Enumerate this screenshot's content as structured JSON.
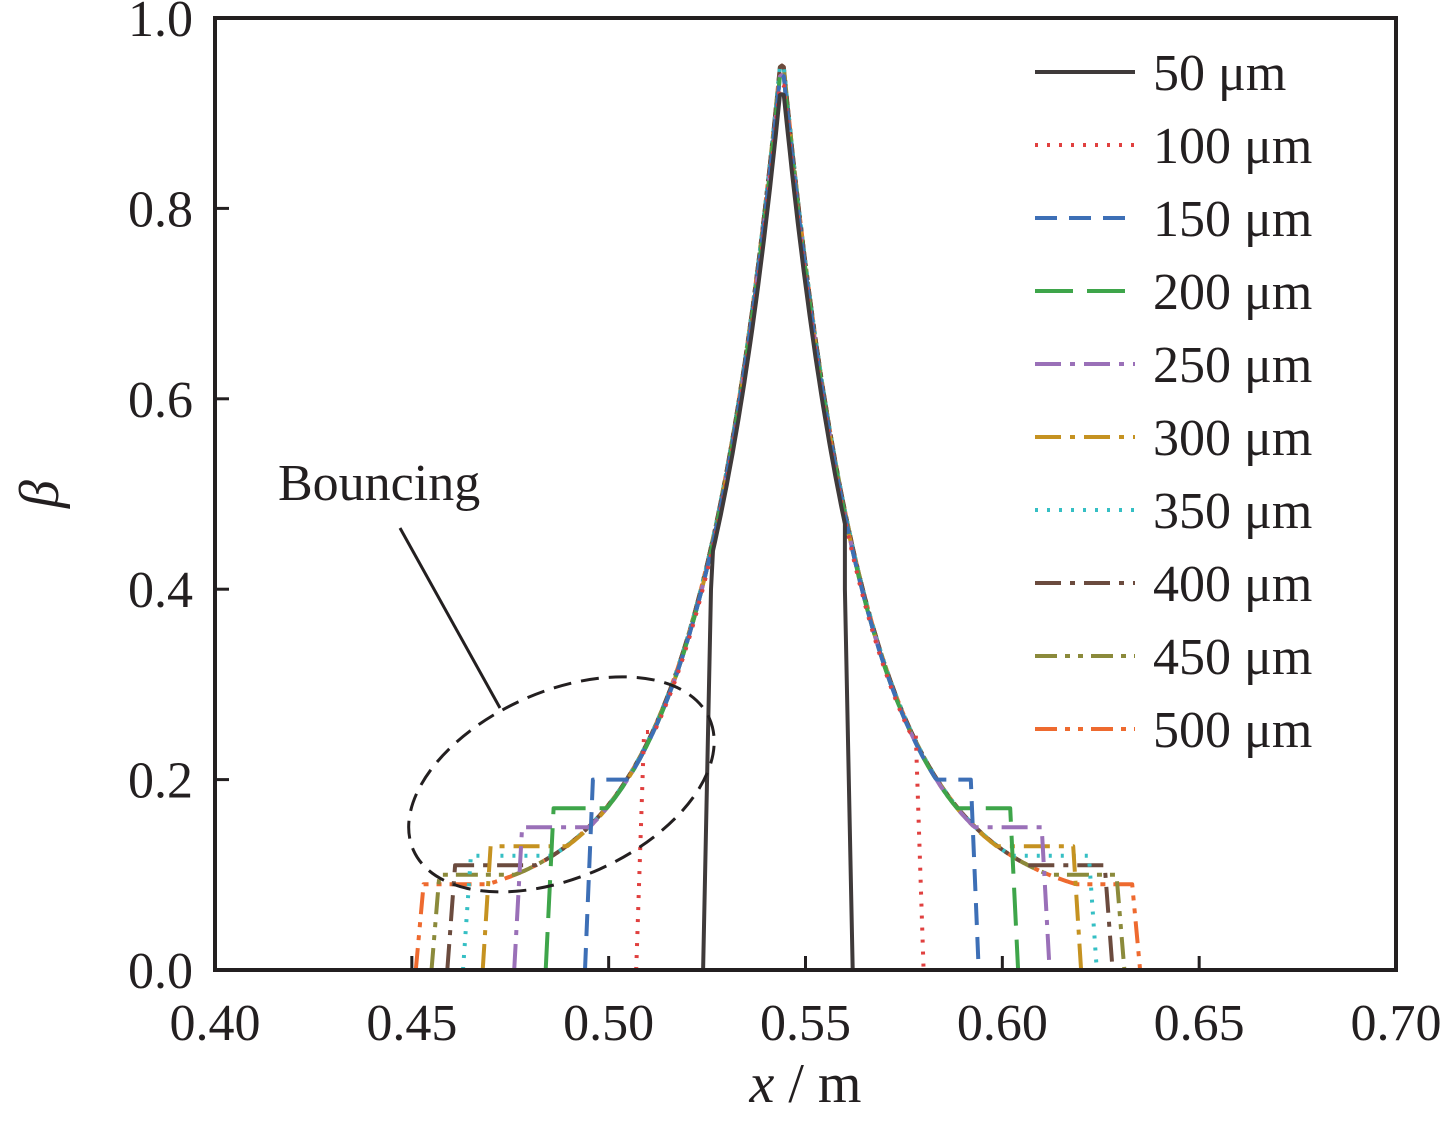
{
  "chart_data": {
    "type": "line",
    "xlabel_var": "x",
    "xlabel_unit": " / m",
    "ylabel": "β",
    "xlim": [
      0.4,
      0.7
    ],
    "ylim": [
      0.0,
      1.0
    ],
    "xticks": [
      "0.40",
      "0.45",
      "0.50",
      "0.55",
      "0.60",
      "0.65",
      "0.70"
    ],
    "yticks": [
      "0.0",
      "0.2",
      "0.4",
      "0.6",
      "0.8",
      "1.0"
    ],
    "grid": false,
    "legend_position": "top-right",
    "annotation": {
      "text": "Bouncing",
      "target_center": [
        0.488,
        0.195
      ]
    },
    "peak": {
      "x": 0.544,
      "y": 0.95
    },
    "series": [
      {
        "name": "50 μm",
        "color": "#3f3a3a",
        "dash": "solid",
        "left_cut": 0.524,
        "right_cut": 0.562,
        "cut_y": 0.4,
        "peak_y": 0.92
      },
      {
        "name": "100 μm",
        "color": "#e0403f",
        "dash": "dotted",
        "left_cut": 0.507,
        "right_cut": 0.58,
        "cut_y": 0.25,
        "peak_y": 0.93
      },
      {
        "name": "150 μm",
        "color": "#3d6fb6",
        "dash": "dash",
        "left_cut": 0.494,
        "right_cut": 0.594,
        "cut_y": 0.2,
        "peak_y": 0.94
      },
      {
        "name": "200 μm",
        "color": "#3ea54a",
        "dash": "longdash",
        "left_cut": 0.484,
        "right_cut": 0.604,
        "cut_y": 0.17,
        "peak_y": 0.94
      },
      {
        "name": "250 μm",
        "color": "#9a70b8",
        "dash": "dashdot",
        "left_cut": 0.476,
        "right_cut": 0.612,
        "cut_y": 0.15,
        "peak_y": 0.94
      },
      {
        "name": "300 μm",
        "color": "#c59221",
        "dash": "dashdot",
        "left_cut": 0.468,
        "right_cut": 0.62,
        "cut_y": 0.13,
        "peak_y": 0.94
      },
      {
        "name": "350 μm",
        "color": "#35bfc4",
        "dash": "dotted",
        "left_cut": 0.463,
        "right_cut": 0.624,
        "cut_y": 0.12,
        "peak_y": 0.95
      },
      {
        "name": "400 μm",
        "color": "#6b4b3e",
        "dash": "dashdot",
        "left_cut": 0.459,
        "right_cut": 0.628,
        "cut_y": 0.11,
        "peak_y": 0.95
      },
      {
        "name": "450 μm",
        "color": "#8b8a3b",
        "dash": "dashdotdot",
        "left_cut": 0.455,
        "right_cut": 0.631,
        "cut_y": 0.1,
        "peak_y": 0.95
      },
      {
        "name": "500 μm",
        "color": "#ee6a2f",
        "dash": "dashdotdot",
        "left_cut": 0.451,
        "right_cut": 0.635,
        "cut_y": 0.09,
        "peak_y": 0.95
      }
    ]
  }
}
